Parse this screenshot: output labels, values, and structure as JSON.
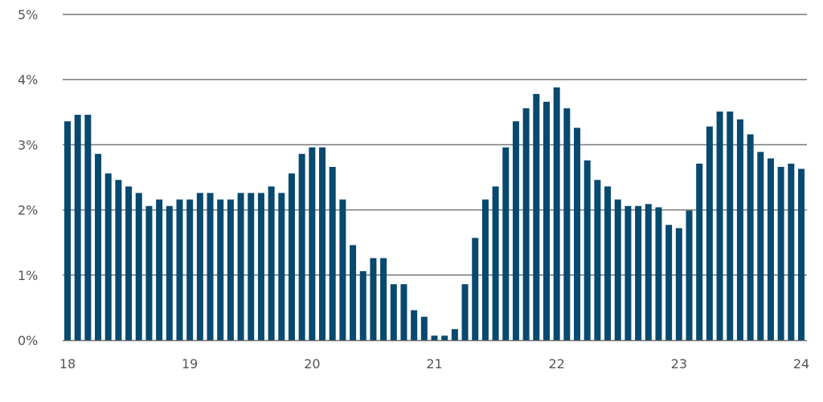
{
  "chart_data": {
    "type": "bar",
    "title": "",
    "xlabel": "",
    "ylabel": "",
    "ylim": [
      0,
      5
    ],
    "y_ticks": [
      "0%",
      "1%",
      "2%",
      "3%",
      "4%",
      "5%"
    ],
    "y_tick_values": [
      0,
      1,
      2,
      3,
      4,
      5
    ],
    "x_ticks": [
      "18",
      "19",
      "20",
      "21",
      "22",
      "23",
      "24"
    ],
    "x_tick_positions": [
      0,
      12,
      24,
      36,
      48,
      60,
      72
    ],
    "grid": true,
    "legend": "none",
    "colors": {
      "bar": "#07496f",
      "grid": "#777777",
      "text": "#555555"
    },
    "values": [
      3.36,
      3.46,
      3.46,
      2.86,
      2.56,
      2.46,
      2.36,
      2.26,
      2.06,
      2.16,
      2.06,
      2.16,
      2.16,
      2.26,
      2.26,
      2.16,
      2.16,
      2.26,
      2.26,
      2.26,
      2.36,
      2.26,
      2.56,
      2.86,
      2.96,
      2.96,
      2.66,
      2.16,
      1.46,
      1.06,
      1.26,
      1.26,
      0.86,
      0.86,
      0.46,
      0.36,
      0.07,
      0.07,
      0.17,
      0.86,
      1.57,
      2.16,
      2.36,
      2.96,
      3.36,
      3.56,
      3.78,
      3.66,
      3.88,
      3.56,
      3.26,
      2.76,
      2.46,
      2.36,
      2.16,
      2.06,
      2.06,
      2.09,
      2.04,
      1.77,
      1.72,
      1.99,
      2.71,
      3.28,
      3.51,
      3.51,
      3.39,
      3.16,
      2.89,
      2.79,
      2.66,
      2.71,
      2.63
    ]
  }
}
